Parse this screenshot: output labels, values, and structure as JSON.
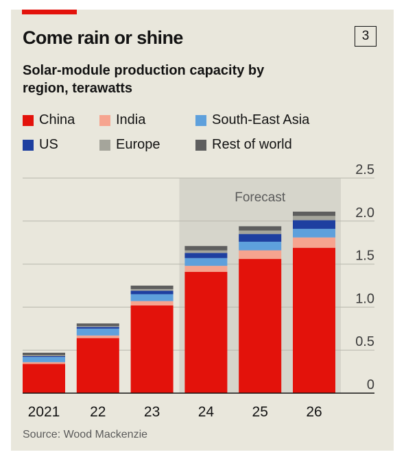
{
  "header": {
    "title": "Come rain or shine",
    "chart_number": "3",
    "subtitle": "Solar-module production capacity by region, terawatts"
  },
  "footer": {
    "source": "Source: Wood Mackenzie"
  },
  "colors": {
    "China": "#e3120b",
    "India": "#f6a48f",
    "South-East Asia": "#5ea0dc",
    "US": "#1e3fa0",
    "Europe": "#a5a59b",
    "Rest of world": "#5e5e5e",
    "forecast_band": "#d6d5cb",
    "grid": "#b8b7ad",
    "accent": "#e3120b"
  },
  "chart_data": {
    "type": "bar",
    "stacked": true,
    "title": "Come rain or shine",
    "subtitle": "Solar-module production capacity by region, terawatts",
    "categories": [
      "2021",
      "22",
      "23",
      "24",
      "25",
      "26"
    ],
    "series": [
      {
        "name": "China",
        "values": [
          0.34,
          0.64,
          1.02,
          1.41,
          1.56,
          1.69
        ]
      },
      {
        "name": "India",
        "values": [
          0.02,
          0.03,
          0.05,
          0.07,
          0.1,
          0.12
        ]
      },
      {
        "name": "South-East Asia",
        "values": [
          0.06,
          0.08,
          0.08,
          0.09,
          0.1,
          0.1
        ]
      },
      {
        "name": "US",
        "values": [
          0.01,
          0.02,
          0.04,
          0.06,
          0.09,
          0.1
        ]
      },
      {
        "name": "Europe",
        "values": [
          0.01,
          0.01,
          0.02,
          0.03,
          0.04,
          0.05
        ]
      },
      {
        "name": "Rest of world",
        "values": [
          0.03,
          0.03,
          0.04,
          0.05,
          0.05,
          0.05
        ]
      }
    ],
    "ylim": [
      0,
      2.5
    ],
    "yticks": [
      "0",
      "0.5",
      "1.0",
      "1.5",
      "2.0",
      "2.5"
    ],
    "y_axis_position": "right",
    "grid": true,
    "legend": "top",
    "annotation": {
      "text": "Forecast",
      "from_category": "24",
      "to_category": "26"
    }
  }
}
